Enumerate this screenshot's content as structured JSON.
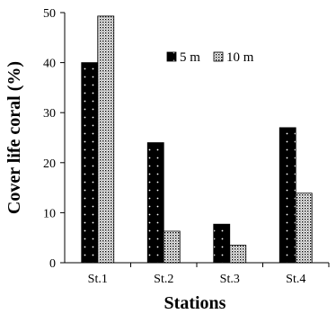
{
  "chart_data": {
    "type": "bar",
    "title": "",
    "xlabel": "Stations",
    "ylabel": "Cover life coral (%)",
    "categories": [
      "St.1",
      "St.2",
      "St.3",
      "St.4"
    ],
    "series": [
      {
        "name": "5 m",
        "values": [
          40,
          24,
          7.7,
          27
        ],
        "pattern": "dark-dots"
      },
      {
        "name": "10 m",
        "values": [
          49.3,
          6.3,
          3.5,
          13.9
        ],
        "pattern": "light-dots"
      }
    ],
    "ylim": [
      0,
      50
    ],
    "yticks": [
      0,
      10,
      20,
      30,
      40,
      50
    ],
    "grid": false,
    "legend_position": "top-right"
  }
}
